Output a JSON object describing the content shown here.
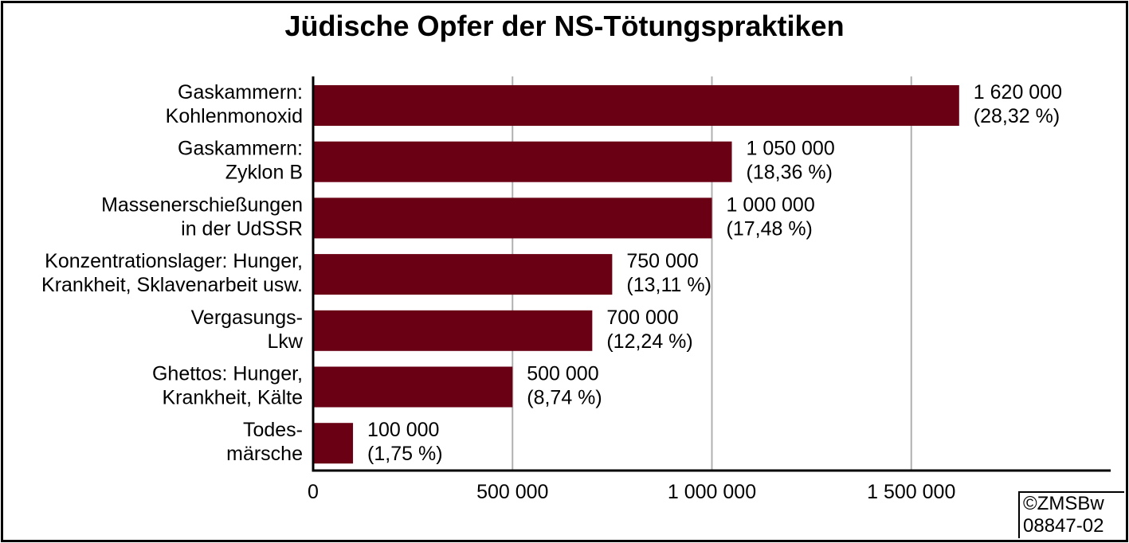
{
  "chart_data": {
    "type": "bar",
    "orientation": "horizontal",
    "title": "Jüdische Opfer der NS-Tötungspraktiken",
    "xlabel": "",
    "ylabel": "",
    "xlim": [
      0,
      2000000
    ],
    "grid": true,
    "colors": {
      "bar": "#6a0013",
      "grid": "#b0b0b0",
      "axis": "#000000"
    },
    "categories": [
      [
        "Gaskammern:",
        "Kohlenmonoxid"
      ],
      [
        "Gaskammern:",
        "Zyklon B"
      ],
      [
        "Massenerschießungen",
        "in der UdSSR"
      ],
      [
        "Konzentrationslager: Hunger,",
        "Krankheit, Sklavenarbeit usw."
      ],
      [
        "Vergasungs-",
        "Lkw"
      ],
      [
        "Ghettos: Hunger,",
        "Krankheit, Kälte"
      ],
      [
        "Todes-",
        "märsche"
      ]
    ],
    "values": [
      1620000,
      1050000,
      1000000,
      750000,
      700000,
      500000,
      100000
    ],
    "value_labels": [
      [
        "1 620 000",
        "(28,32 %)"
      ],
      [
        "1 050 000",
        "(18,36 %)"
      ],
      [
        "1 000 000",
        "(17,48 %)"
      ],
      [
        "750 000",
        "(13,11 %)"
      ],
      [
        "700 000",
        "(12,24 %)"
      ],
      [
        "500 000",
        "(8,74 %)"
      ],
      [
        "100 000",
        "(1,75 %)"
      ]
    ],
    "ticks": [
      0,
      500000,
      1000000,
      1500000
    ],
    "tick_labels": [
      "0",
      "500 000",
      "1 000 000",
      "1 500 000"
    ]
  },
  "credit": {
    "line1": "©ZMSBw",
    "line2": "08847-02"
  }
}
